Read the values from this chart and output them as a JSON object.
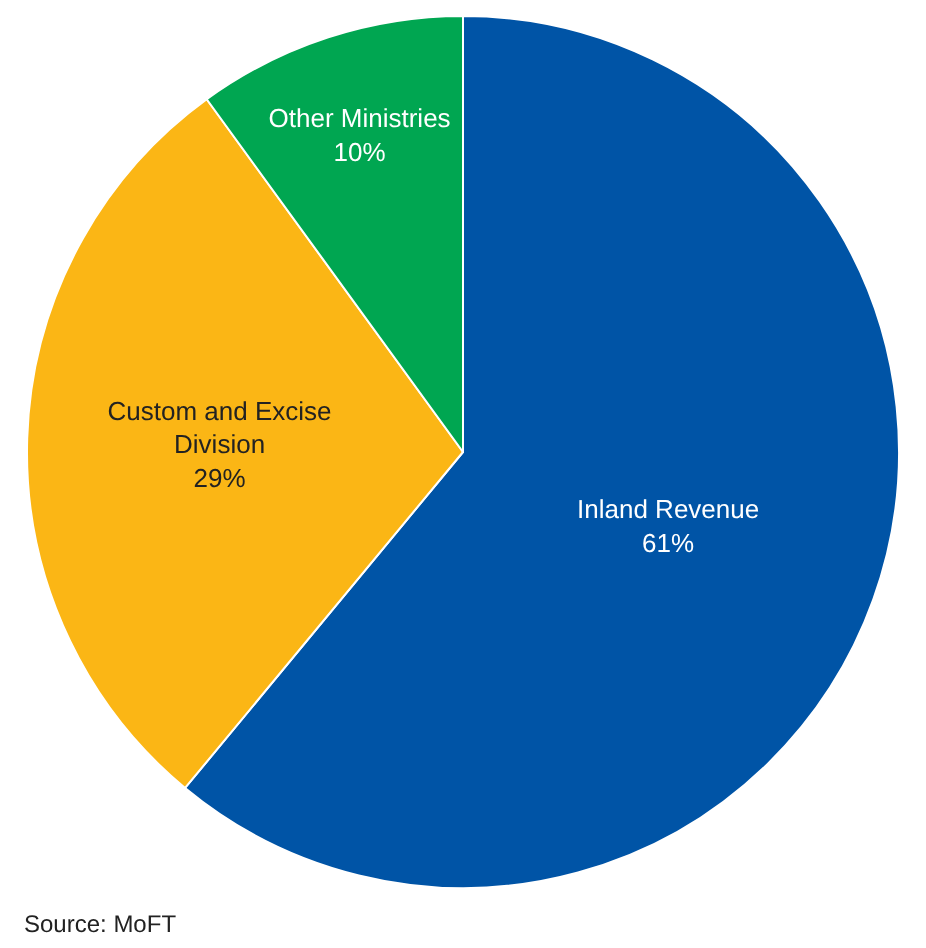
{
  "chart_data": {
    "type": "pie",
    "categories": [
      "Inland Revenue",
      "Custom and Excise Division",
      "Other Ministries"
    ],
    "values": [
      61,
      29,
      10
    ],
    "value_labels": [
      "61%",
      "29%",
      "10%"
    ],
    "colors": [
      "#0054a6",
      "#fbb615",
      "#00a651"
    ],
    "annotations": [
      "Source: MoFT"
    ],
    "legend": false
  }
}
